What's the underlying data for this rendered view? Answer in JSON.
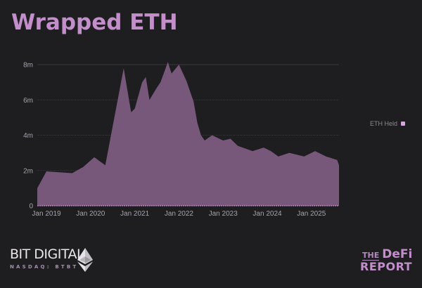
{
  "title": "Wrapped ETH",
  "legend": {
    "label": "ETH Held",
    "color": "#d7a6dd"
  },
  "colors": {
    "fill": "#77577a",
    "background": "#1e1d20",
    "title": "#c28fcb",
    "gridline": "#3a383e",
    "baseline": "#d7a6dd"
  },
  "branding": {
    "left_name": "BIT DIGITAL",
    "left_ticker": "NASDAQ: BTBT",
    "right_top_small": "THE",
    "right_top_large": "DeFi",
    "right_bottom": "REPORT"
  },
  "chart_data": {
    "type": "area",
    "title": "Wrapped ETH",
    "xlabel": "",
    "ylabel": "",
    "ylim": [
      0,
      8000000
    ],
    "yticks": [
      0,
      2000000,
      4000000,
      6000000,
      8000000
    ],
    "ytick_labels": [
      "0",
      "2m",
      "4m",
      "6m",
      "8m"
    ],
    "xtick_labels": [
      "Jan 2019",
      "Jan 2020",
      "Jan 2021",
      "Jan 2022",
      "Jan 2023",
      "Jan 2024",
      "Jan 2025"
    ],
    "grid": true,
    "legend_position": "right",
    "series": [
      {
        "name": "ETH Held",
        "x": [
          "2018-10",
          "2019-01",
          "2019-08",
          "2019-11",
          "2020-02",
          "2020-05",
          "2020-10",
          "2020-12",
          "2021-01",
          "2021-03",
          "2021-04",
          "2021-05",
          "2021-07",
          "2021-08",
          "2021-10",
          "2021-11",
          "2022-01",
          "2022-03",
          "2022-05",
          "2022-06",
          "2022-07",
          "2022-08",
          "2022-10",
          "2023-01",
          "2023-03",
          "2023-05",
          "2023-09",
          "2023-12",
          "2024-02",
          "2024-04",
          "2024-07",
          "2024-11",
          "2025-02",
          "2025-05",
          "2025-08",
          "2025-09"
        ],
        "values": [
          1000000,
          1950000,
          1850000,
          2200000,
          2750000,
          2300000,
          7800000,
          5300000,
          5500000,
          7000000,
          7300000,
          6000000,
          6700000,
          7000000,
          8150000,
          7500000,
          8000000,
          7100000,
          5900000,
          4700000,
          4000000,
          3700000,
          4000000,
          3700000,
          3800000,
          3400000,
          3100000,
          3300000,
          3100000,
          2800000,
          3000000,
          2800000,
          3100000,
          2800000,
          2600000,
          2300000
        ]
      }
    ]
  }
}
